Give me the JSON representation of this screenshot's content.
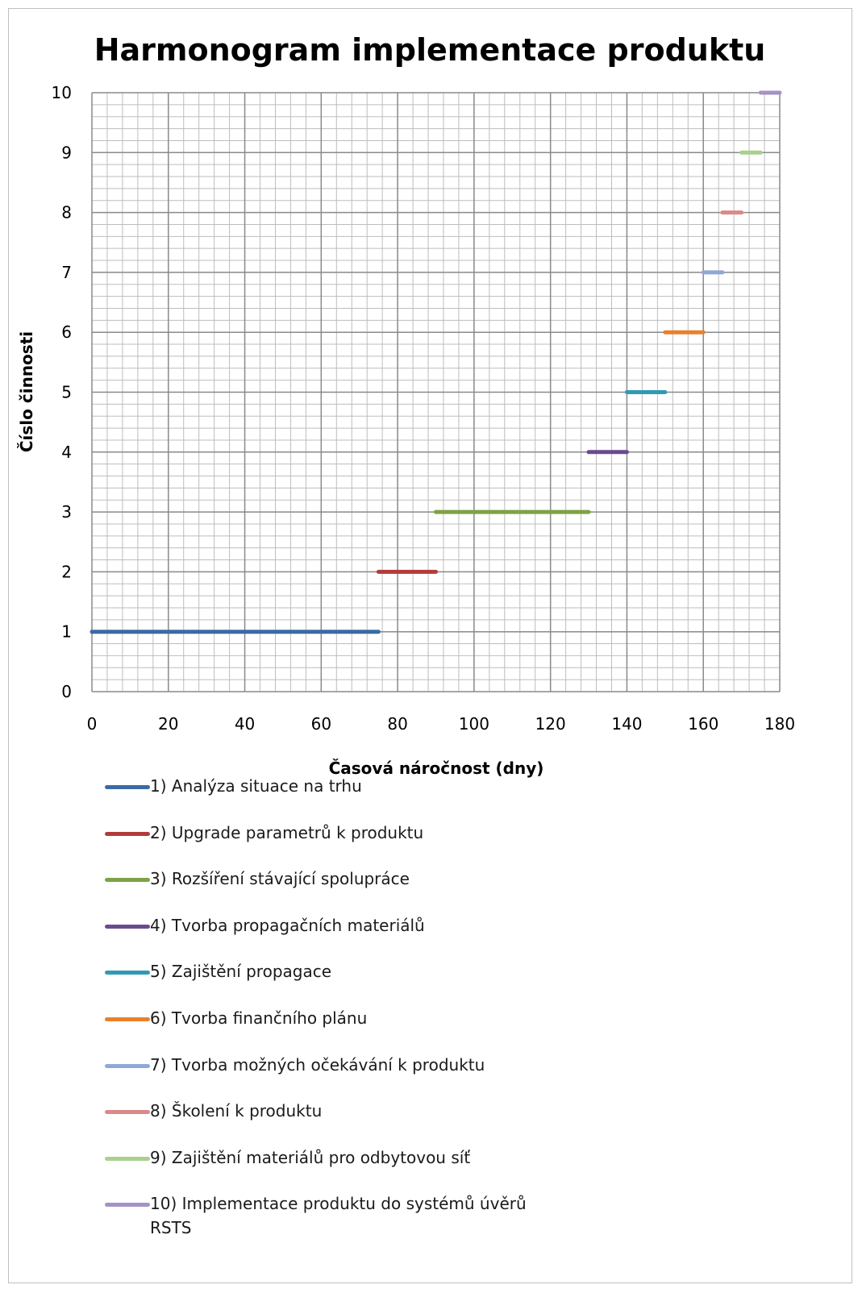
{
  "chart_data": {
    "type": "line",
    "title": "Harmonogram implementace produktu",
    "xlabel": "Časová náročnost (dny)",
    "ylabel": "Číslo činnosti",
    "xlim": [
      0,
      180
    ],
    "ylim": [
      0,
      10
    ],
    "x_ticks": [
      0,
      20,
      40,
      60,
      80,
      100,
      120,
      140,
      160,
      180
    ],
    "y_ticks": [
      0,
      1,
      2,
      3,
      4,
      5,
      6,
      7,
      8,
      9,
      10
    ],
    "grid": true,
    "legend_position": "bottom",
    "series": [
      {
        "name": "1) Analýza situace na trhu",
        "color": "#3a6ba5",
        "start": 0,
        "end": 75,
        "y": 1
      },
      {
        "name": "2) Upgrade parametrů k produktu",
        "color": "#b23c3a",
        "start": 75,
        "end": 90,
        "y": 2
      },
      {
        "name": "3) Rozšíření stávající spolupráce",
        "color": "#7ea244",
        "start": 90,
        "end": 130,
        "y": 3
      },
      {
        "name": "4) Tvorba propagačních materiálů",
        "color": "#6a4b8f",
        "start": 130,
        "end": 140,
        "y": 4
      },
      {
        "name": "5) Zajištění propagace",
        "color": "#2f9bb3",
        "start": 140,
        "end": 150,
        "y": 5
      },
      {
        "name": "6) Tvorba finančního plánu",
        "color": "#e8812d",
        "start": 150,
        "end": 160,
        "y": 6
      },
      {
        "name": "7) Tvorba možných očekávání k produktu",
        "color": "#8fa8d6",
        "start": 160,
        "end": 165,
        "y": 7
      },
      {
        "name": "8) Školení k produktu",
        "color": "#d98a88",
        "start": 165,
        "end": 170,
        "y": 8
      },
      {
        "name": "9) Zajištění materiálů pro odbytovou síť",
        "color": "#a9d08e",
        "start": 170,
        "end": 175,
        "y": 9
      },
      {
        "name": "10) Implementace produktu do systémů úvěrů RSTS",
        "color": "#a593c4",
        "start": 175,
        "end": 180,
        "y": 10
      }
    ]
  }
}
